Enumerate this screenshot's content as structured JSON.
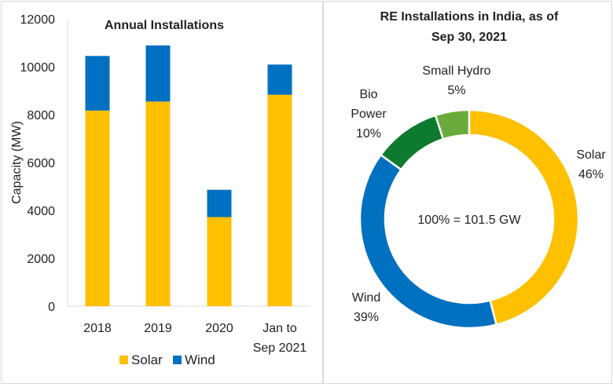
{
  "chart_data": [
    {
      "type": "bar",
      "stacked": true,
      "title": "Annual Installations",
      "xlabel": "",
      "ylabel": "Capacity (MW)",
      "ylim": [
        0,
        12000
      ],
      "yticks": [
        0,
        2000,
        4000,
        6000,
        8000,
        10000,
        12000
      ],
      "categories": [
        "2018",
        "2019",
        "2020",
        "Jan to Sep 2021"
      ],
      "category_lines": [
        [
          "2018"
        ],
        [
          "2019"
        ],
        [
          "2020"
        ],
        [
          "Jan to",
          "Sep 2021"
        ]
      ],
      "series": [
        {
          "name": "Solar",
          "color": "#FFC000",
          "values": [
            8170,
            8545,
            3720,
            8830
          ]
        },
        {
          "name": "Wind",
          "color": "#0070C0",
          "values": [
            2280,
            2345,
            1140,
            1260
          ]
        }
      ],
      "grid": false,
      "legend": "bottom"
    },
    {
      "type": "pie",
      "donut": true,
      "title_lines": [
        "RE Installations in India, as of",
        "Sep 30, 2021"
      ],
      "center_label": "100% = 101.5 GW",
      "slices": [
        {
          "name": "Solar",
          "value": 46,
          "label_lines": [
            "Solar",
            "46%"
          ],
          "color": "#FFC000"
        },
        {
          "name": "Wind",
          "value": 39,
          "label_lines": [
            "Wind",
            "39%"
          ],
          "color": "#0070C0"
        },
        {
          "name": "Bio Power",
          "value": 10,
          "label_lines": [
            "Bio",
            "Power",
            "10%"
          ],
          "color": "#0E7A2E"
        },
        {
          "name": "Small Hydro",
          "value": 5,
          "label_lines": [
            "Small Hydro",
            "5%"
          ],
          "color": "#6AAA3A"
        }
      ]
    }
  ]
}
